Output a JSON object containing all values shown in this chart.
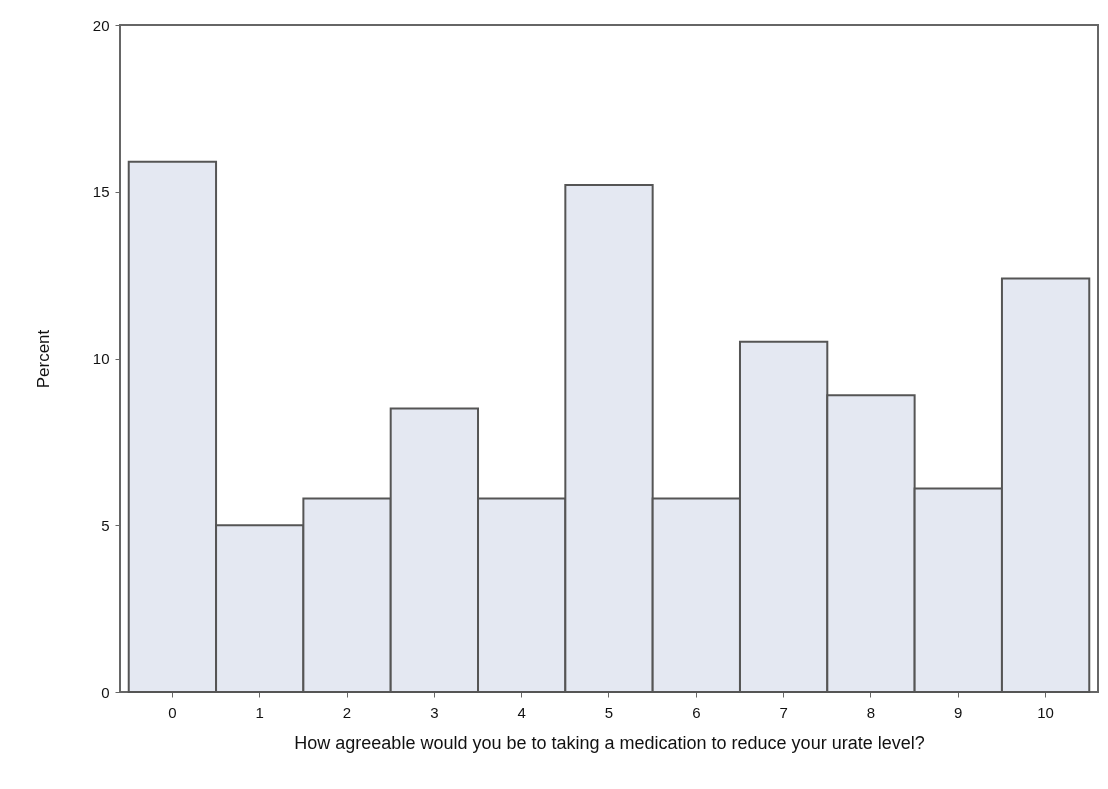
{
  "chart_data": {
    "type": "bar",
    "xlabel": "How agreeable would you be to taking a medication to reduce your urate level?",
    "ylabel": "Percent",
    "categories": [
      "0",
      "1",
      "2",
      "3",
      "4",
      "5",
      "6",
      "7",
      "8",
      "9",
      "10"
    ],
    "values": [
      15.9,
      5.0,
      5.8,
      8.5,
      5.8,
      15.2,
      5.8,
      10.5,
      8.9,
      6.1,
      12.4
    ],
    "color": "#e4e8f2",
    "ylim": [
      0,
      20
    ],
    "yticks": [
      0,
      5,
      10,
      15,
      20
    ],
    "grid": false
  }
}
